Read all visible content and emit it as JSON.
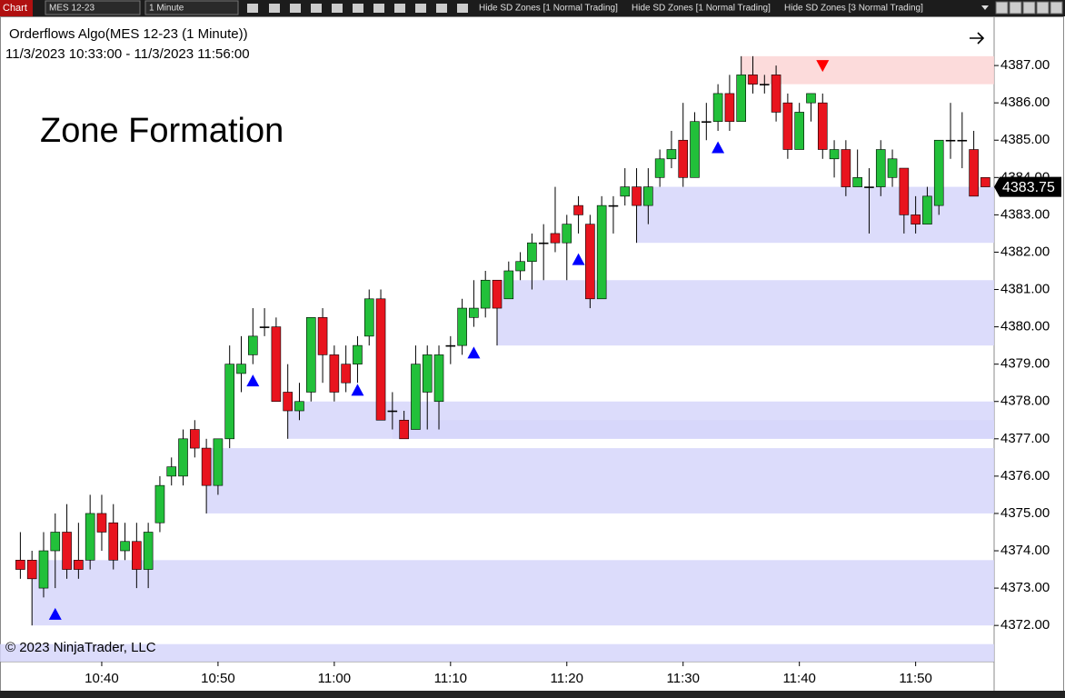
{
  "toolbar": {
    "window": "Chart",
    "instrument": "MES 12-23",
    "interval": "1 Minute",
    "buttons": [
      "Hide SD Zones [1 Normal Trading]",
      "Hide SD Zones [1 Normal Trading]",
      "Hide SD Zones [3 Normal Trading]"
    ]
  },
  "chart_data": {
    "type": "candlestick",
    "title": "Orderflows Algo(MES 12-23 (1 Minute))",
    "subtitle": "11/3/2023 10:33:00 - 11/3/2023 11:56:00",
    "annotation": "Zone Formation",
    "copyright": "© 2023 NinjaTrader, LLC",
    "up_color": "#22c03a",
    "down_color": "#e8141e",
    "zone_color": "#d6d6fa",
    "supply_zone_color": "#fcd5d5",
    "signal_up_color": "#0000ff",
    "signal_down_color": "#ff0000",
    "x": [
      633,
      634,
      635,
      636,
      637,
      638,
      639,
      640,
      641,
      642,
      643,
      644,
      645,
      646,
      647,
      648,
      649,
      650,
      651,
      652,
      653,
      654,
      655,
      656,
      657,
      658,
      659,
      660,
      661,
      662,
      663,
      664,
      665,
      666,
      667,
      668,
      669,
      670,
      671,
      672,
      673,
      674,
      675,
      676,
      677,
      678,
      679,
      680,
      681,
      682,
      683,
      684,
      685,
      686,
      687,
      688,
      689,
      690,
      691,
      692,
      693,
      694,
      695,
      696,
      697,
      698,
      699,
      700,
      701,
      702,
      703,
      704,
      705,
      706,
      707,
      708,
      709,
      710,
      711,
      712,
      713,
      714,
      715,
      716
    ],
    "open": [
      4373.75,
      4373.75,
      4373,
      4374,
      4374.5,
      4373.75,
      4373.75,
      4375,
      4374.75,
      4374,
      4374.25,
      4373.5,
      4374.75,
      4376,
      4376,
      4377.25,
      4376.75,
      4375.75,
      4377,
      4378.75,
      4379.25,
      4380,
      4380,
      4378.25,
      4377.75,
      4378.25,
      4380.25,
      4379.25,
      4379,
      4379,
      4379.75,
      4380.75,
      4377.75,
      4377.5,
      4377.25,
      4378.25,
      4378,
      4379.5,
      4379.5,
      4380.25,
      4380.5,
      4381.25,
      4380.75,
      4381.5,
      4381.75,
      4382.25,
      4382.5,
      4382.25,
      4383.25,
      4382.75,
      4380.75,
      4383.25,
      4383.5,
      4383.75,
      4383.25,
      4384,
      4384.5,
      4385,
      4384,
      4385.5,
      4385.5,
      4386.25,
      4385.5,
      4386.75,
      4386.5,
      4386.75,
      4386,
      4384.75,
      4386,
      4386,
      4384.5,
      4384.75,
      4383.75,
      4383.75,
      4383.75,
      4384,
      4384.25,
      4383,
      4382.75,
      4383.25,
      4385,
      4385,
      4384.75,
      4384
    ],
    "high": [
      4374.5,
      4374,
      4374.5,
      4375,
      4375.25,
      4374.75,
      4375.5,
      4375.5,
      4375.25,
      4374.75,
      4374.75,
      4374.75,
      4376,
      4376.5,
      4377.25,
      4377.5,
      4377,
      4377,
      4379.5,
      4379.75,
      4380.5,
      4380.5,
      4380.25,
      4379,
      4378.5,
      4380.25,
      4380.5,
      4379.5,
      4379.5,
      4379.75,
      4381,
      4381,
      4378.25,
      4377.75,
      4379.5,
      4379.5,
      4379.5,
      4379.75,
      4380.75,
      4381.25,
      4381.5,
      4381.25,
      4381.75,
      4382,
      4382.5,
      4382.75,
      4383.75,
      4383,
      4383.5,
      4383,
      4383.5,
      4383.5,
      4384.25,
      4384.25,
      4384.25,
      4384.75,
      4385.25,
      4386,
      4385.75,
      4386,
      4386.5,
      4386.75,
      4387.25,
      4387.25,
      4386.75,
      4387,
      4386.25,
      4386,
      4386.25,
      4386.25,
      4385,
      4385,
      4384.75,
      4384.25,
      4385,
      4384.75,
      4384.25,
      4383.5,
      4383.75,
      4385,
      4386,
      4385.75,
      4385.25,
      4384
    ],
    "low": [
      4373.25,
      4372,
      4372.75,
      4373,
      4373.25,
      4373.25,
      4373.5,
      4374,
      4373.5,
      4373.75,
      4373,
      4373,
      4374.5,
      4375.75,
      4375.75,
      4376.5,
      4375,
      4375.5,
      4376.75,
      4378.25,
      4379,
      4379.75,
      4378,
      4377,
      4377.5,
      4378,
      4378.5,
      4378,
      4378.25,
      4378.5,
      4379.5,
      4377.5,
      4377.25,
      4377,
      4377.25,
      4377.25,
      4377.25,
      4379,
      4379.25,
      4380,
      4380.25,
      4379.5,
      4380.75,
      4381.25,
      4381,
      4381.25,
      4382,
      4381.25,
      4382.5,
      4380.5,
      4380.75,
      4382.5,
      4383.25,
      4382.25,
      4382.75,
      4383.75,
      4384.25,
      4383.75,
      4384,
      4385,
      4385.25,
      4385.25,
      4385.5,
      4386.25,
      4386.25,
      4385.5,
      4384.5,
      4384.75,
      4385.5,
      4384.5,
      4384,
      4383.5,
      4383.75,
      4382.5,
      4383.5,
      4383.75,
      4382.5,
      4382.5,
      4382.75,
      4383,
      4384.5,
      4384.25,
      4383.5,
      4383.75
    ],
    "close": [
      4373.5,
      4373.25,
      4374,
      4374.5,
      4373.5,
      4373.5,
      4375,
      4374.5,
      4373.75,
      4374.25,
      4373.5,
      4374.5,
      4375.75,
      4376.25,
      4377,
      4376.75,
      4375.75,
      4377,
      4379,
      4379,
      4379.75,
      4380,
      4378,
      4377.75,
      4378,
      4380.25,
      4379.25,
      4378.25,
      4378.5,
      4379.5,
      4380.75,
      4377.5,
      4377.75,
      4377,
      4379,
      4379.25,
      4379.25,
      4379.5,
      4380.5,
      4380.5,
      4381.25,
      4380.5,
      4381.5,
      4381.75,
      4382.25,
      4382.25,
      4382.25,
      4382.75,
      4383,
      4380.75,
      4383.25,
      4383.25,
      4383.75,
      4383.25,
      4383.75,
      4384.5,
      4384.75,
      4384,
      4385.5,
      4385.5,
      4386.25,
      4385.5,
      4386.75,
      4386.5,
      4386.5,
      4385.75,
      4384.75,
      4385.75,
      4386.25,
      4384.75,
      4384.75,
      4383.75,
      4384,
      4383.75,
      4384.75,
      4384.5,
      4383,
      4382.75,
      4383.5,
      4385,
      4385,
      4385,
      4383.5,
      4383.75
    ],
    "zones": [
      {
        "start": 634,
        "top": 4373.75,
        "bottom": 4372,
        "kind": "demand"
      },
      {
        "start": 631.25,
        "top": 4371.5,
        "bottom": 4371,
        "kind": "demand"
      },
      {
        "start": 649,
        "top": 4376.75,
        "bottom": 4375,
        "kind": "demand"
      },
      {
        "start": 656,
        "top": 4378,
        "bottom": 4377,
        "kind": "demand"
      },
      {
        "start": 665,
        "top": 4377.5,
        "bottom": 4377,
        "kind": "demand"
      },
      {
        "start": 674,
        "top": 4381.25,
        "bottom": 4379.5,
        "kind": "demand"
      },
      {
        "start": 686,
        "top": 4383.75,
        "bottom": 4382.25,
        "kind": "demand"
      },
      {
        "start": 695,
        "top": 4387.25,
        "bottom": 4386.5,
        "kind": "supply"
      }
    ],
    "signals": [
      {
        "x": 636,
        "y": 4372.3,
        "dir": "up"
      },
      {
        "x": 653,
        "y": 4378.55,
        "dir": "up"
      },
      {
        "x": 662,
        "y": 4378.3,
        "dir": "up"
      },
      {
        "x": 672,
        "y": 4379.3,
        "dir": "up"
      },
      {
        "x": 681,
        "y": 4381.8,
        "dir": "up"
      },
      {
        "x": 693,
        "y": 4384.8,
        "dir": "up"
      },
      {
        "x": 702,
        "y": 4387,
        "dir": "down"
      }
    ],
    "last_price": 4383.75,
    "xlim": [
      631.25,
      716.75
    ],
    "xticks": [
      {
        "value": 640,
        "label": "10:40"
      },
      {
        "value": 650,
        "label": "10:50"
      },
      {
        "value": 660,
        "label": "11:00"
      },
      {
        "value": 670,
        "label": "11:10"
      },
      {
        "value": 680,
        "label": "11:20"
      },
      {
        "value": 690,
        "label": "11:30"
      },
      {
        "value": 700,
        "label": "11:40"
      },
      {
        "value": 710,
        "label": "11:50"
      }
    ],
    "ylim": [
      4371.03,
      4388.22
    ],
    "yticks": [
      {
        "value": 4372,
        "label": "4372.00"
      },
      {
        "value": 4373,
        "label": "4373.00"
      },
      {
        "value": 4374,
        "label": "4374.00"
      },
      {
        "value": 4375,
        "label": "4375.00"
      },
      {
        "value": 4376,
        "label": "4376.00"
      },
      {
        "value": 4377,
        "label": "4377.00"
      },
      {
        "value": 4378,
        "label": "4378.00"
      },
      {
        "value": 4379,
        "label": "4379.00"
      },
      {
        "value": 4380,
        "label": "4380.00"
      },
      {
        "value": 4381,
        "label": "4381.00"
      },
      {
        "value": 4382,
        "label": "4382.00"
      },
      {
        "value": 4383,
        "label": "4383.00"
      },
      {
        "value": 4384,
        "label": "4384.00"
      },
      {
        "value": 4385,
        "label": "4385.00"
      },
      {
        "value": 4386,
        "label": "4386.00"
      },
      {
        "value": 4387,
        "label": "4387.00"
      }
    ]
  }
}
